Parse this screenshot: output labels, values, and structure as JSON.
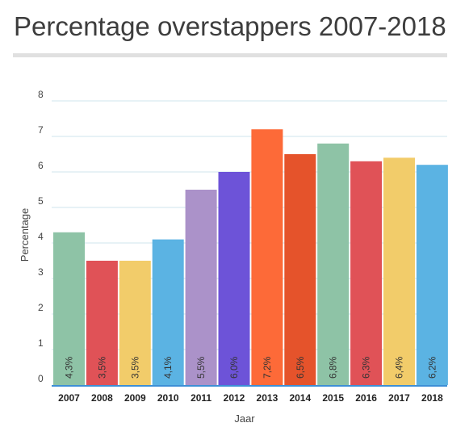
{
  "chart_data": {
    "type": "bar",
    "title": "Percentage overstappers 2007-2018",
    "xlabel": "Jaar",
    "ylabel": "Percentage",
    "ylim": [
      0,
      8
    ],
    "yticks": [
      "0",
      "1",
      "2",
      "3",
      "4",
      "5",
      "6",
      "7",
      "8"
    ],
    "grid": true,
    "categories": [
      "2007",
      "2008",
      "2009",
      "2010",
      "2011",
      "2012",
      "2013",
      "2014",
      "2015",
      "2016",
      "2017",
      "2018"
    ],
    "values": [
      4.3,
      3.5,
      3.5,
      4.1,
      5.5,
      6.0,
      7.2,
      6.5,
      6.8,
      6.3,
      6.4,
      6.2
    ],
    "data_labels": [
      "4,3%",
      "3,5%",
      "3,5%",
      "4,1%",
      "5,5%",
      "6,0%",
      "7,2%",
      "6,5%",
      "6,8%",
      "6,3%",
      "6,4%",
      "6,2%"
    ],
    "colors": [
      "#8ec3a6",
      "#e05257",
      "#f2cc6a",
      "#5bb3e3",
      "#ab92c9",
      "#6d53d8",
      "#fd6a38",
      "#e5532b",
      "#8ec3a6",
      "#e05257",
      "#f2cc6a",
      "#5bb3e3"
    ]
  }
}
